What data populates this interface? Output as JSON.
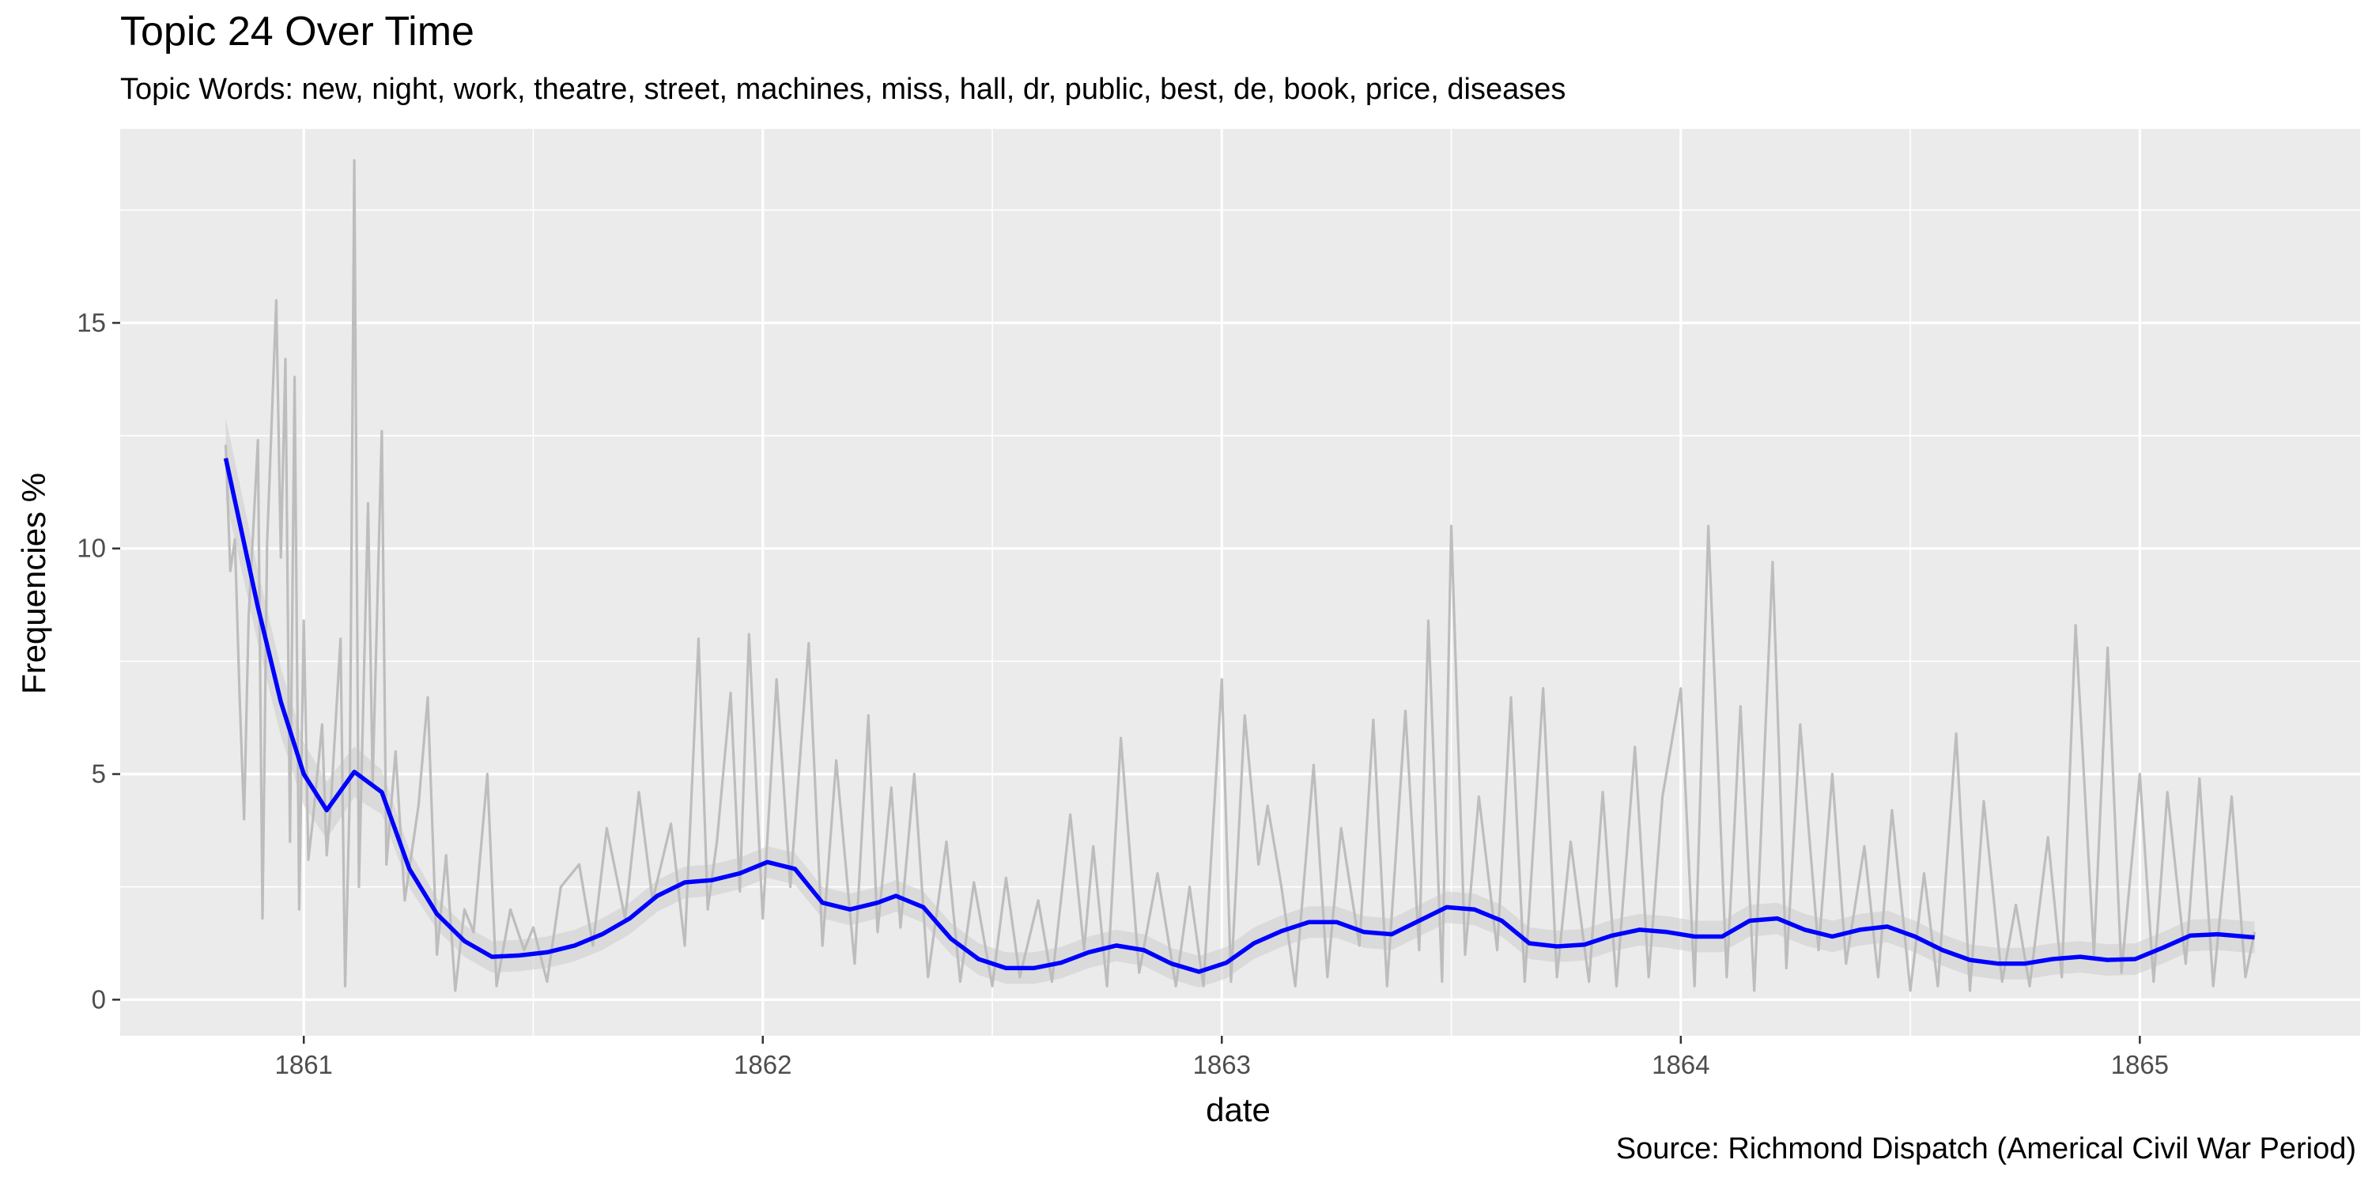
{
  "chart_data": {
    "type": "line",
    "title": "Topic 24 Over Time",
    "subtitle": "Topic Words: new, night, work, theatre, street, machines, miss, hall, dr, public, best, de, book, price, diseases",
    "caption": "Source: Richmond Dispatch (Americal Civil War Period)",
    "xlabel": "date",
    "ylabel": "Frequencies %",
    "xlim": [
      1860.6,
      1865.48
    ],
    "ylim": [
      -0.8,
      19.3
    ],
    "x_ticks": [
      1861,
      1862,
      1863,
      1864,
      1865
    ],
    "x_tick_labels": [
      "1861",
      "1862",
      "1863",
      "1864",
      "1865"
    ],
    "y_ticks": [
      0,
      5,
      10,
      15
    ],
    "y_tick_labels": [
      "0",
      "5",
      "10",
      "15"
    ],
    "grid": true,
    "colors": {
      "panel_background": "#ebebeb",
      "grid_line": "#ffffff",
      "raw_series": "#bdbdbd",
      "smooth_series": "#0000ff",
      "confidence_band": "#cccccc"
    },
    "series": [
      {
        "role": "raw",
        "x": [
          1860.83,
          1860.84,
          1860.85,
          1860.86,
          1860.87,
          1860.88,
          1860.9,
          1860.91,
          1860.92,
          1860.94,
          1860.95,
          1860.96,
          1860.97,
          1860.98,
          1860.99,
          1861.0,
          1861.01,
          1861.02,
          1861.04,
          1861.05,
          1861.06,
          1861.08,
          1861.09,
          1861.1,
          1861.11,
          1861.12,
          1861.14,
          1861.15,
          1861.17,
          1861.18,
          1861.2,
          1861.22,
          1861.25,
          1861.27,
          1861.29,
          1861.31,
          1861.33,
          1861.35,
          1861.37,
          1861.4,
          1861.42,
          1861.45,
          1861.48,
          1861.5,
          1861.53,
          1861.56,
          1861.6,
          1861.63,
          1861.66,
          1861.7,
          1861.73,
          1861.76,
          1861.8,
          1861.83,
          1861.86,
          1861.88,
          1861.9,
          1861.93,
          1861.95,
          1861.97,
          1862.0,
          1862.03,
          1862.06,
          1862.1,
          1862.13,
          1862.16,
          1862.2,
          1862.23,
          1862.25,
          1862.28,
          1862.3,
          1862.33,
          1862.36,
          1862.4,
          1862.43,
          1862.46,
          1862.5,
          1862.53,
          1862.56,
          1862.6,
          1862.63,
          1862.67,
          1862.7,
          1862.72,
          1862.75,
          1862.78,
          1862.82,
          1862.86,
          1862.9,
          1862.93,
          1862.96,
          1863.0,
          1863.02,
          1863.05,
          1863.08,
          1863.1,
          1863.13,
          1863.16,
          1863.2,
          1863.23,
          1863.26,
          1863.3,
          1863.33,
          1863.36,
          1863.4,
          1863.43,
          1863.45,
          1863.48,
          1863.5,
          1863.53,
          1863.56,
          1863.6,
          1863.63,
          1863.66,
          1863.7,
          1863.73,
          1863.76,
          1863.8,
          1863.83,
          1863.86,
          1863.9,
          1863.93,
          1863.96,
          1864.0,
          1864.03,
          1864.06,
          1864.1,
          1864.13,
          1864.16,
          1864.2,
          1864.23,
          1864.26,
          1864.3,
          1864.33,
          1864.36,
          1864.4,
          1864.43,
          1864.46,
          1864.5,
          1864.53,
          1864.56,
          1864.6,
          1864.63,
          1864.66,
          1864.7,
          1864.73,
          1864.76,
          1864.8,
          1864.83,
          1864.86,
          1864.9,
          1864.93,
          1864.96,
          1865.0,
          1865.03,
          1865.06,
          1865.1,
          1865.13,
          1865.16,
          1865.2,
          1865.23,
          1865.25
        ],
        "y": [
          12.3,
          9.5,
          10.2,
          6.8,
          4.0,
          8.5,
          12.4,
          1.8,
          10.1,
          15.5,
          9.8,
          14.2,
          3.5,
          13.8,
          2.0,
          8.4,
          3.1,
          4.0,
          6.1,
          3.2,
          4.5,
          8.0,
          0.3,
          4.5,
          18.6,
          2.5,
          11.0,
          4.8,
          12.6,
          3.0,
          5.5,
          2.2,
          4.3,
          6.7,
          1.0,
          3.2,
          0.2,
          2.0,
          1.5,
          5.0,
          0.3,
          2.0,
          1.1,
          1.6,
          0.4,
          2.5,
          3.0,
          1.2,
          3.8,
          1.8,
          4.6,
          2.2,
          3.9,
          1.2,
          8.0,
          2.0,
          3.5,
          6.8,
          2.4,
          8.1,
          1.8,
          7.1,
          2.5,
          7.9,
          1.2,
          5.3,
          0.8,
          6.3,
          1.5,
          4.7,
          1.6,
          5.0,
          0.5,
          3.5,
          0.4,
          2.6,
          0.3,
          2.7,
          0.5,
          2.2,
          0.4,
          4.1,
          1.1,
          3.4,
          0.3,
          5.8,
          0.6,
          2.8,
          0.3,
          2.5,
          0.3,
          7.1,
          0.4,
          6.3,
          3.0,
          4.3,
          2.5,
          0.3,
          5.2,
          0.5,
          3.8,
          1.2,
          6.2,
          0.3,
          6.4,
          1.1,
          8.4,
          0.4,
          10.5,
          1.0,
          4.5,
          1.1,
          6.7,
          0.4,
          6.9,
          0.5,
          3.5,
          0.4,
          4.6,
          0.3,
          5.6,
          0.5,
          4.5,
          6.9,
          0.3,
          10.5,
          0.5,
          6.5,
          0.2,
          9.7,
          0.7,
          6.1,
          1.1,
          5.0,
          0.8,
          3.4,
          0.5,
          4.2,
          0.2,
          2.8,
          0.3,
          5.9,
          0.2,
          4.4,
          0.4,
          2.1,
          0.3,
          3.6,
          0.5,
          8.3,
          1.0,
          7.8,
          0.6,
          5.0,
          0.4,
          4.6,
          0.8,
          4.9,
          0.3,
          4.5,
          0.5,
          1.5
        ]
      },
      {
        "role": "smooth",
        "x": [
          1860.83,
          1860.9,
          1860.95,
          1861.0,
          1861.05,
          1861.11,
          1861.17,
          1861.23,
          1861.29,
          1861.35,
          1861.41,
          1861.47,
          1861.53,
          1861.59,
          1861.65,
          1861.71,
          1861.77,
          1861.83,
          1861.89,
          1861.95,
          1862.01,
          1862.07,
          1862.13,
          1862.19,
          1862.25,
          1862.29,
          1862.35,
          1862.41,
          1862.47,
          1862.53,
          1862.59,
          1862.65,
          1862.71,
          1862.77,
          1862.83,
          1862.89,
          1862.95,
          1863.01,
          1863.07,
          1863.13,
          1863.19,
          1863.25,
          1863.31,
          1863.37,
          1863.43,
          1863.49,
          1863.55,
          1863.61,
          1863.67,
          1863.73,
          1863.79,
          1863.85,
          1863.91,
          1863.97,
          1864.03,
          1864.09,
          1864.15,
          1864.21,
          1864.27,
          1864.33,
          1864.39,
          1864.45,
          1864.51,
          1864.57,
          1864.63,
          1864.69,
          1864.75,
          1864.81,
          1864.87,
          1864.93,
          1864.99,
          1865.05,
          1865.11,
          1865.17,
          1865.25
        ],
        "y": [
          12.0,
          8.7,
          6.6,
          5.0,
          4.2,
          5.05,
          4.6,
          2.9,
          1.9,
          1.3,
          0.95,
          0.98,
          1.05,
          1.2,
          1.45,
          1.8,
          2.3,
          2.6,
          2.65,
          2.8,
          3.05,
          2.9,
          2.15,
          2.0,
          2.15,
          2.3,
          2.05,
          1.35,
          0.9,
          0.7,
          0.7,
          0.82,
          1.05,
          1.2,
          1.1,
          0.8,
          0.62,
          0.82,
          1.25,
          1.52,
          1.72,
          1.72,
          1.5,
          1.45,
          1.75,
          2.05,
          2.0,
          1.75,
          1.25,
          1.18,
          1.22,
          1.42,
          1.55,
          1.5,
          1.4,
          1.4,
          1.75,
          1.8,
          1.55,
          1.4,
          1.55,
          1.62,
          1.4,
          1.1,
          0.88,
          0.8,
          0.8,
          0.9,
          0.95,
          0.88,
          0.9,
          1.15,
          1.42,
          1.45,
          1.38
        ]
      }
    ]
  }
}
